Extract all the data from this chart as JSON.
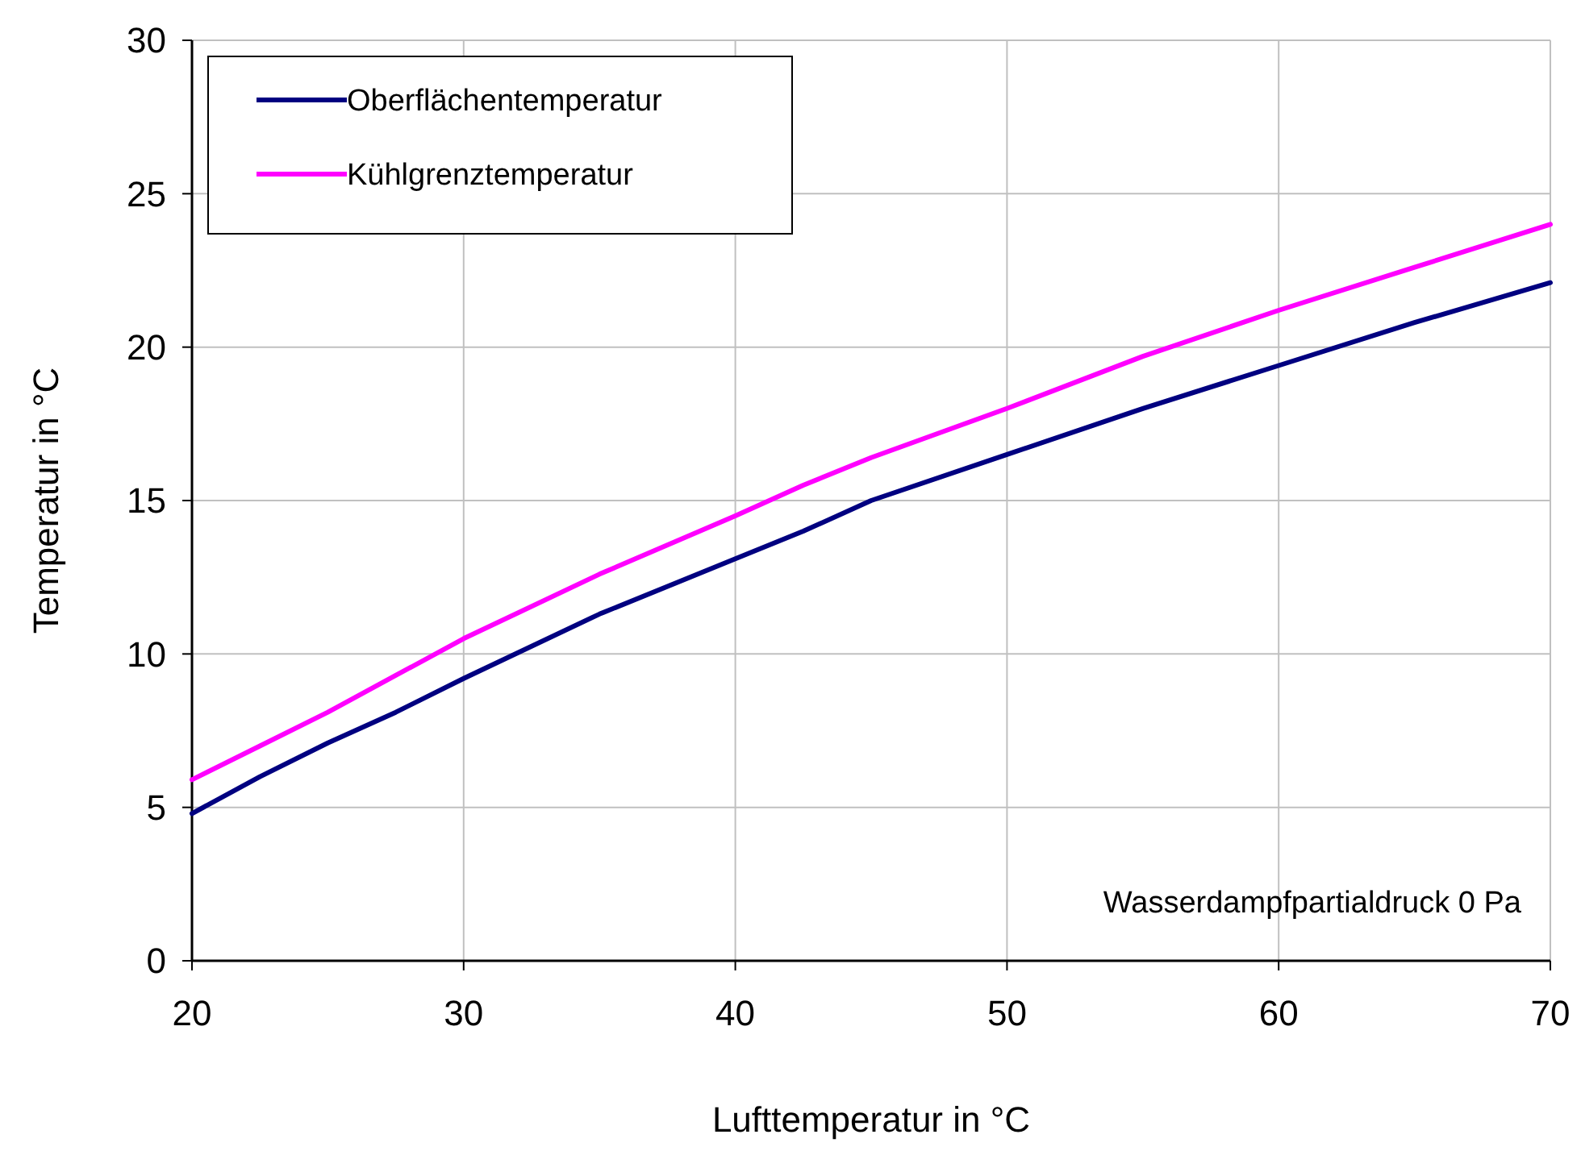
{
  "chart_data": {
    "type": "line",
    "xlabel": "Lufttemperatur in °C",
    "ylabel": "Temperatur in °C",
    "x": [
      20,
      22.5,
      25,
      27.5,
      30,
      35,
      40,
      42.5,
      45,
      50,
      55,
      60,
      65,
      70
    ],
    "series": [
      {
        "name": "Oberflächentemperatur",
        "color": "#000080",
        "values": [
          4.8,
          6.0,
          7.1,
          8.1,
          9.2,
          11.3,
          13.1,
          14.0,
          15.0,
          16.5,
          18.0,
          19.4,
          20.8,
          22.1
        ]
      },
      {
        "name": "Kühlgrenztemperatur",
        "color": "#ff00ff",
        "values": [
          5.9,
          7.0,
          8.1,
          9.3,
          10.5,
          12.6,
          14.5,
          15.5,
          16.4,
          18.0,
          19.7,
          21.2,
          22.6,
          24.0
        ]
      }
    ],
    "xlim": [
      20,
      70
    ],
    "xticks": [
      20,
      30,
      40,
      50,
      60,
      70
    ],
    "ylim": [
      0,
      30
    ],
    "yticks": [
      0,
      5,
      10,
      15,
      20,
      25,
      30
    ],
    "grid": true,
    "legend": "top left",
    "marker": "none",
    "line_style": "solid",
    "annotations": [
      "Wasserdampfpartialdruck 0 Pa"
    ]
  }
}
